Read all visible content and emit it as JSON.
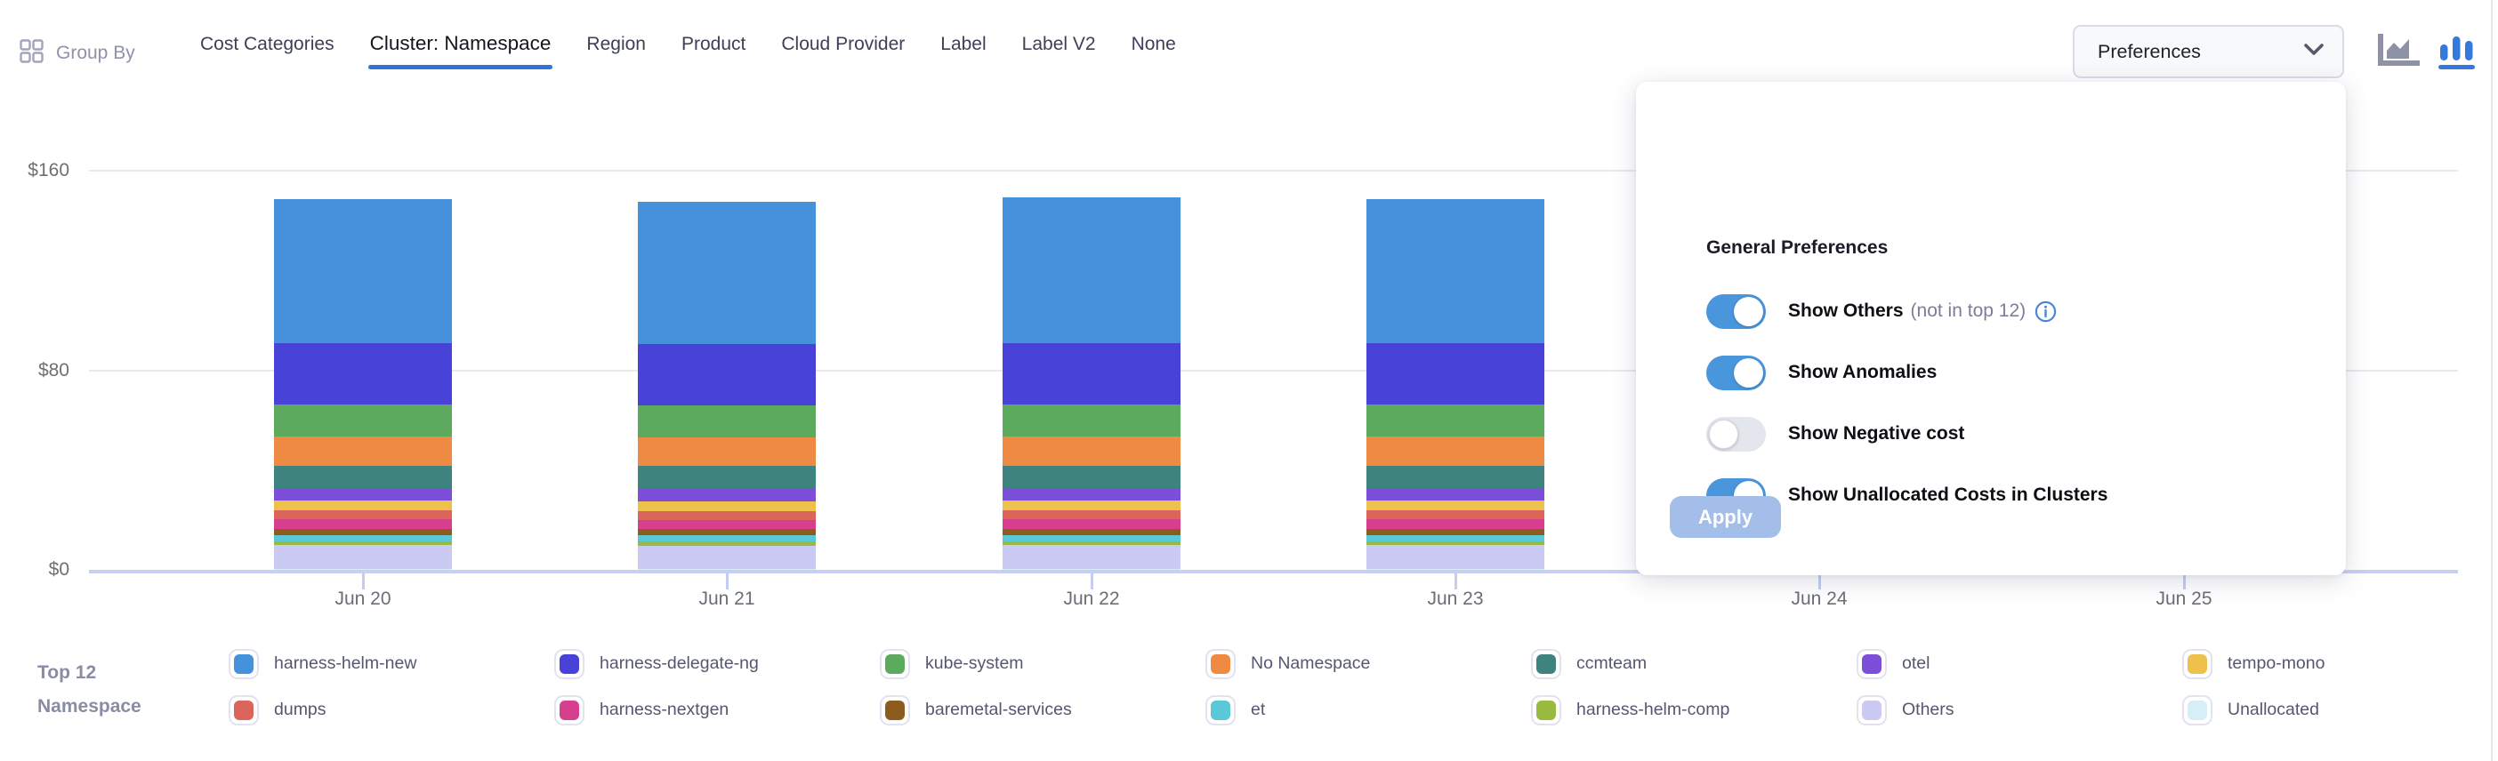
{
  "header": {
    "group_by_label": "Group By",
    "tabs": [
      {
        "label": "Cost Categories",
        "active": false
      },
      {
        "label": "Cluster: Namespace",
        "active": true
      },
      {
        "label": "Region",
        "active": false
      },
      {
        "label": "Product",
        "active": false
      },
      {
        "label": "Cloud Provider",
        "active": false
      },
      {
        "label": "Label",
        "active": false
      },
      {
        "label": "Label V2",
        "active": false
      },
      {
        "label": "None",
        "active": false
      }
    ],
    "preferences_button": {
      "label": "Preferences"
    },
    "chart_type_icons": [
      {
        "name": "area-chart-icon",
        "active": false,
        "color": "#8F91A6"
      },
      {
        "name": "bar-chart-icon",
        "active": true,
        "color": "#3679DC"
      }
    ]
  },
  "preferences_panel": {
    "title": "General Preferences",
    "toggles": [
      {
        "label": "Show Others",
        "suffix": "(not in top 12)",
        "has_info": true,
        "on": true
      },
      {
        "label": "Show Anomalies",
        "suffix": "",
        "has_info": false,
        "on": true
      },
      {
        "label": "Show Negative cost",
        "suffix": "",
        "has_info": false,
        "on": false
      },
      {
        "label": "Show Unallocated Costs in Clusters",
        "suffix": "",
        "has_info": false,
        "on": true
      }
    ],
    "apply_label": "Apply",
    "toggle_on_color": "#4A96DD",
    "toggle_off_color": "#E3E6EC"
  },
  "legend": {
    "title_lines": [
      "Top 12",
      "Namespace"
    ]
  },
  "chart_data": {
    "type": "bar",
    "stacked": true,
    "title": "",
    "xlabel": "",
    "ylabel": "",
    "ylim": [
      0,
      160
    ],
    "grid": true,
    "legend_position": "bottom",
    "categories": [
      "Jun 20",
      "Jun 21",
      "Jun 22",
      "Jun 23",
      "Jun 24",
      "Jun 25"
    ],
    "y_axis_ticks": [
      {
        "label": "$160",
        "value": 160
      },
      {
        "label": "$80",
        "value": 80
      },
      {
        "label": "$0",
        "value": 0
      }
    ],
    "note": "Series listed top-of-stack first; bars for Jun 24 and Jun 25 are hidden behind the preferences popover (null values).",
    "series": [
      {
        "name": "harness-helm-new",
        "color": "#4691DB",
        "values": [
          57.8,
          57.1,
          58.4,
          57.8,
          null,
          null
        ]
      },
      {
        "name": "harness-delegate-ng",
        "color": "#4842D8",
        "values": [
          24.6,
          24.5,
          24.7,
          24.6,
          null,
          null
        ]
      },
      {
        "name": "kube-system",
        "color": "#5CAA5E",
        "values": [
          12.9,
          13.0,
          12.9,
          12.9,
          null,
          null
        ]
      },
      {
        "name": "No Namespace",
        "color": "#EE8A41",
        "values": [
          11.6,
          11.5,
          11.6,
          11.6,
          null,
          null
        ]
      },
      {
        "name": "ccmteam",
        "color": "#3F837F",
        "values": [
          8.8,
          8.8,
          8.8,
          8.8,
          null,
          null
        ]
      },
      {
        "name": "otel",
        "color": "#7D4FD8",
        "values": [
          5.3,
          5.3,
          5.3,
          5.3,
          null,
          null
        ]
      },
      {
        "name": "tempo-mono",
        "color": "#EEC14C",
        "values": [
          3.9,
          3.9,
          3.9,
          3.9,
          null,
          null
        ]
      },
      {
        "name": "dumps",
        "color": "#DB655B",
        "values": [
          3.5,
          3.5,
          3.5,
          3.5,
          null,
          null
        ]
      },
      {
        "name": "harness-nextgen",
        "color": "#D83E8E",
        "values": [
          3.8,
          3.9,
          3.8,
          3.8,
          null,
          null
        ]
      },
      {
        "name": "baremetal-services",
        "color": "#8E5B1F",
        "values": [
          2.5,
          2.5,
          2.5,
          2.5,
          null,
          null
        ]
      },
      {
        "name": "et",
        "color": "#59C8D8",
        "values": [
          2.4,
          2.4,
          2.4,
          2.4,
          null,
          null
        ]
      },
      {
        "name": "harness-helm-comp",
        "color": "#9ABA3F",
        "values": [
          1.7,
          1.7,
          1.7,
          1.7,
          null,
          null
        ]
      },
      {
        "name": "Others",
        "color": "#CBCAF4",
        "values": [
          9.5,
          9.3,
          9.5,
          9.5,
          null,
          null
        ]
      },
      {
        "name": "Unallocated",
        "color": "#D5EEF8",
        "values": [
          0.3,
          0.3,
          0.3,
          0.3,
          null,
          null
        ]
      }
    ]
  }
}
